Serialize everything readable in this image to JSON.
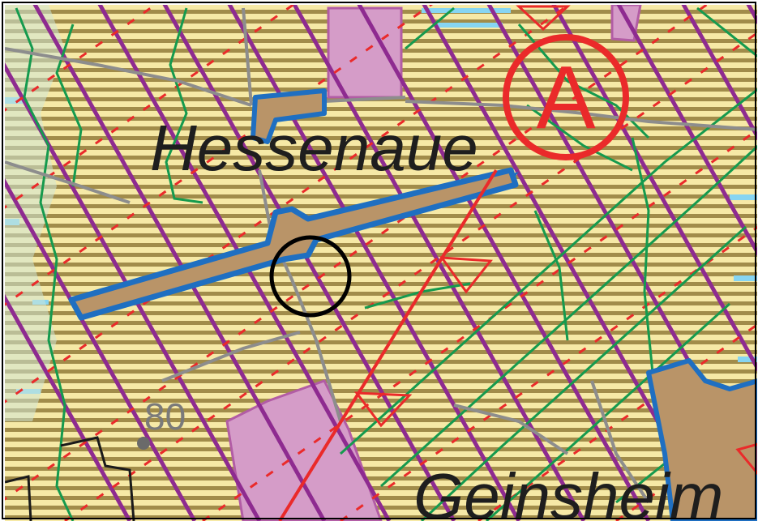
{
  "map": {
    "place_labels": [
      "Hessenaue",
      "Geinsheim"
    ],
    "elevation_label": "80",
    "symbol_label": "A",
    "colors": {
      "farmland_stripe_light": "#f6e9a6",
      "farmland_stripe_dark": "#a18c4a",
      "settlement_pink": "#d59cc8",
      "water_blue": "#1f6fc1",
      "sand_brown": "#b99468",
      "green_lines": "#159a4e",
      "red_lines": "#ea2a2a",
      "purple_lines": "#8e2b90",
      "grey_roads": "#8d8d8d",
      "light_blue": "#86d5f2",
      "marker_circle": "#000000"
    }
  }
}
